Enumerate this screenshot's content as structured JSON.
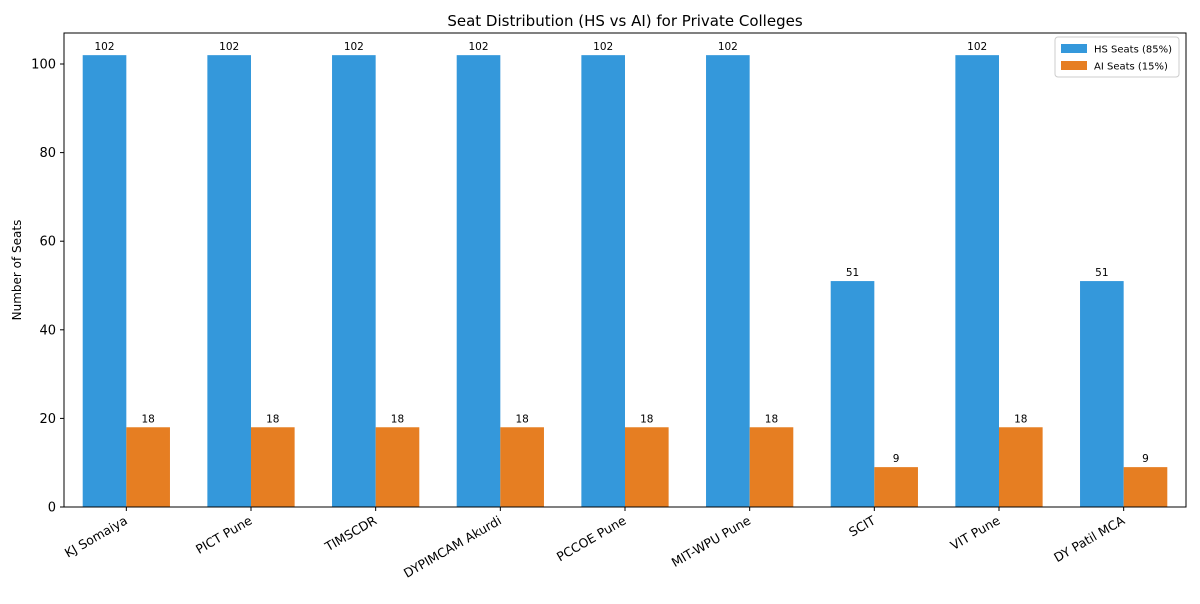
{
  "chart_data": {
    "type": "bar",
    "title": "Seat Distribution (HS vs AI) for Private Colleges",
    "xlabel": "",
    "ylabel": "Number of Seats",
    "ylim": [
      0,
      107
    ],
    "yticks": [
      0,
      20,
      40,
      60,
      80,
      100
    ],
    "grid": false,
    "legend_position": "top-right",
    "categories": [
      "KJ Somaiya",
      "PICT Pune",
      "TIMSCDR",
      "DYPIMCAM Akurdi",
      "PCCOE Pune",
      "MIT-WPU Pune",
      "SCIT",
      "VIT Pune",
      "DY Patil MCA"
    ],
    "series": [
      {
        "name": "HS Seats (85%)",
        "values": [
          102,
          102,
          102,
          102,
          102,
          102,
          51,
          102,
          51
        ],
        "color": "#3498db"
      },
      {
        "name": "AI Seats (15%)",
        "values": [
          18,
          18,
          18,
          18,
          18,
          18,
          9,
          18,
          9
        ],
        "color": "#e67e22"
      }
    ]
  }
}
